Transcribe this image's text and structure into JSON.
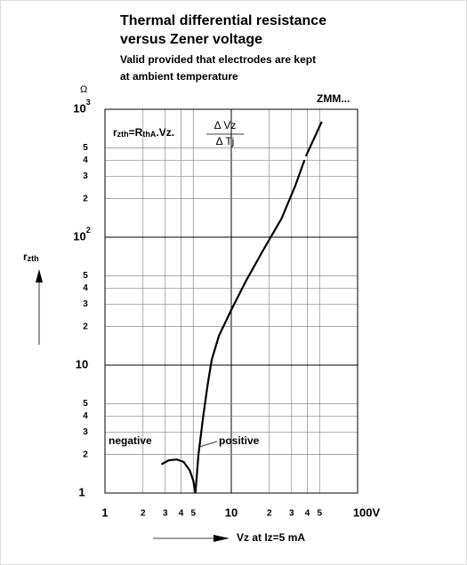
{
  "chart_data": {
    "type": "line",
    "title": [
      "Thermal differential resistance",
      "versus Zener voltage"
    ],
    "subtitle": [
      "Valid provided that electrodes are kept",
      "at ambient temperature"
    ],
    "y_unit": "Ω",
    "y_label": {
      "text": "r",
      "sub": "zth"
    },
    "x_label": "Vz at Iz=5 mA",
    "formula": {
      "lhs": "r",
      "lhs_sub": "zth",
      "eq": "=R",
      "eq_sub": "thA",
      "rest": ".Vz.",
      "numerator": "Δ Vz",
      "denominator": "Δ Tj"
    },
    "annotations": [
      "negative",
      "positive",
      "ZMM..."
    ],
    "xlog": true,
    "ylog": true,
    "grid": true,
    "xlim": [
      1,
      100
    ],
    "ylim": [
      1,
      1000
    ],
    "xticks": [
      1,
      2,
      3,
      4,
      5,
      10,
      {
        "value": 20,
        "label": "2"
      },
      {
        "value": 30,
        "label": "3"
      },
      {
        "value": 40,
        "label": "4"
      },
      {
        "value": 50,
        "label": "5"
      },
      {
        "value": 100,
        "label": "100V"
      }
    ],
    "yticks": [
      1,
      2,
      3,
      4,
      5,
      10,
      {
        "value": 20,
        "label": "2"
      },
      {
        "value": 30,
        "label": "3"
      },
      {
        "value": 40,
        "label": "4"
      },
      {
        "value": 50,
        "label": "5"
      },
      {
        "value": 100,
        "label": "10",
        "sup": "2"
      },
      {
        "value": 200,
        "label": "2"
      },
      {
        "value": 300,
        "label": "3"
      },
      {
        "value": 400,
        "label": "4"
      },
      {
        "value": 500,
        "label": "5"
      },
      {
        "value": 1000,
        "label": "10",
        "sup": "3"
      }
    ],
    "series": [
      {
        "color": "#000000",
        "x": [
          2.8,
          3.2,
          3.7,
          4.2,
          4.7,
          5.0,
          5.2,
          null,
          5.2,
          5.5,
          6,
          6.5,
          7,
          8,
          10,
          13,
          18,
          25,
          32,
          38,
          null,
          39,
          52
        ],
        "values": [
          1.68,
          1.8,
          1.83,
          1.75,
          1.5,
          1.25,
          1.0,
          null,
          1.0,
          2,
          4,
          7,
          11,
          17,
          27,
          45,
          80,
          140,
          250,
          400,
          null,
          430,
          800
        ]
      }
    ]
  }
}
